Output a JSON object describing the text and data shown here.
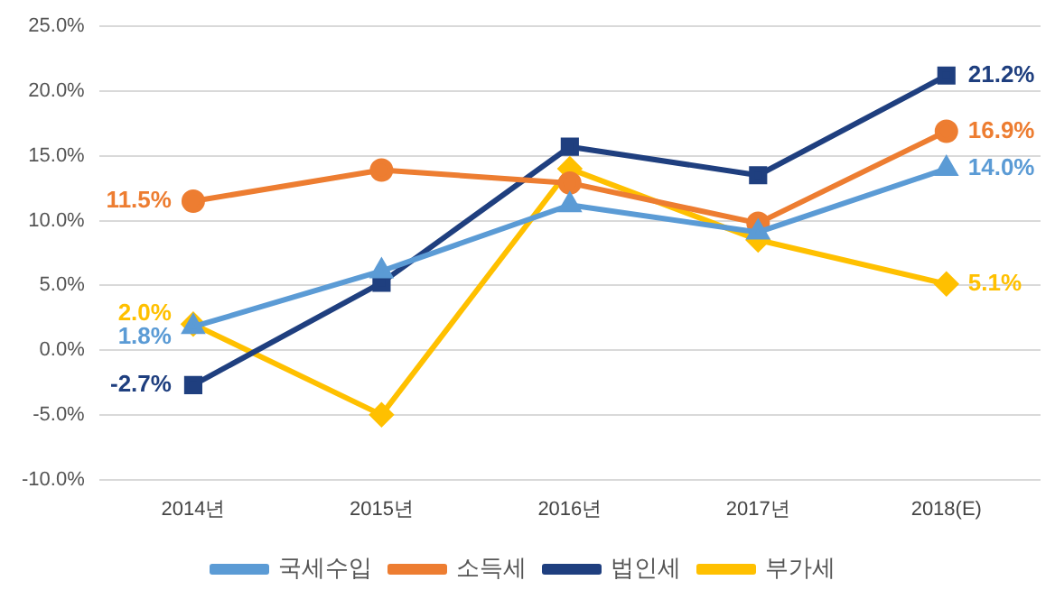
{
  "chart_data": {
    "type": "line",
    "categories": [
      "2014년",
      "2015년",
      "2016년",
      "2017년",
      "2018(E)"
    ],
    "series": [
      {
        "name": "국세수입",
        "color": "#5b9bd5",
        "marker": "triangle",
        "values": [
          1.8,
          6.1,
          11.2,
          9.1,
          14.0
        ],
        "value_labels": [
          "1.8%",
          null,
          null,
          null,
          "14.0%"
        ]
      },
      {
        "name": "소득세",
        "color": "#ed7d31",
        "marker": "circle",
        "values": [
          11.5,
          13.9,
          12.9,
          9.8,
          16.9
        ],
        "value_labels": [
          "11.5%",
          null,
          null,
          null,
          "16.9%"
        ]
      },
      {
        "name": "법인세",
        "color": "#1f3f7f",
        "marker": "square",
        "values": [
          -2.7,
          5.2,
          15.7,
          13.5,
          21.2
        ],
        "value_labels": [
          "-2.7%",
          null,
          null,
          null,
          "21.2%"
        ]
      },
      {
        "name": "부가세",
        "color": "#ffc000",
        "marker": "diamond",
        "values": [
          2.0,
          -5.0,
          14.0,
          8.5,
          5.1
        ],
        "value_labels": [
          "2.0%",
          null,
          null,
          null,
          "5.1%"
        ]
      }
    ],
    "ylim": [
      -10,
      25
    ],
    "yticks": [
      {
        "value": -10,
        "label": "-10.0%"
      },
      {
        "value": -5,
        "label": "-5.0%"
      },
      {
        "value": 0,
        "label": "0.0%"
      },
      {
        "value": 5,
        "label": "5.0%"
      },
      {
        "value": 10,
        "label": "10.0%"
      },
      {
        "value": 15,
        "label": "15.0%"
      },
      {
        "value": 20,
        "label": "20.0%"
      },
      {
        "value": 25,
        "label": "25.0%"
      }
    ],
    "grid": "y",
    "legend": "bottom"
  }
}
